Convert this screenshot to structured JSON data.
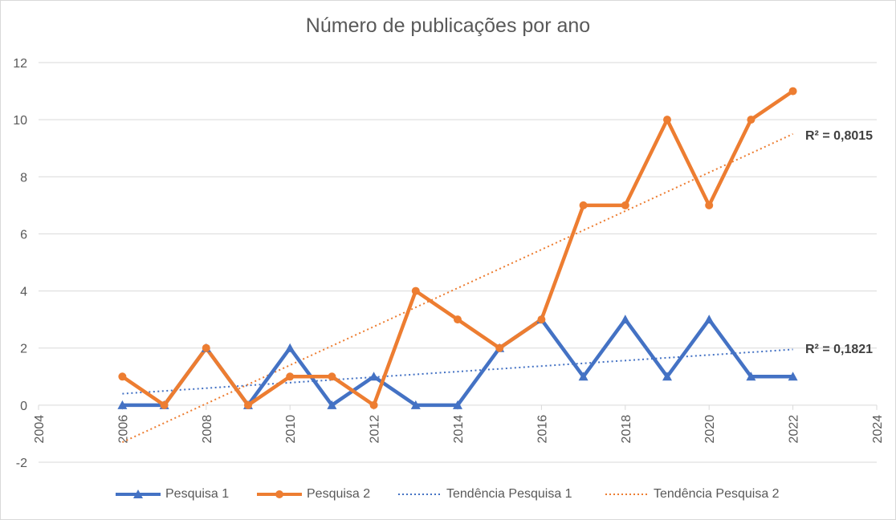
{
  "chart_data": {
    "type": "line",
    "title": "Número de publicações por ano",
    "xlim": [
      2004,
      2024
    ],
    "ylim": [
      -2,
      12
    ],
    "x_ticks": [
      "2004",
      "2006",
      "2008",
      "2010",
      "2012",
      "2014",
      "2016",
      "2018",
      "2020",
      "2022",
      "2024"
    ],
    "y_ticks": [
      "-2",
      "0",
      "2",
      "4",
      "6",
      "8",
      "10",
      "12"
    ],
    "x": [
      2006,
      2007,
      2008,
      2009,
      2010,
      2011,
      2012,
      2013,
      2014,
      2015,
      2016,
      2017,
      2018,
      2019,
      2020,
      2021,
      2022
    ],
    "series": [
      {
        "name": "Pesquisa 1",
        "color": "#4472c4",
        "marker": "triangle",
        "values": [
          0,
          0,
          2,
          0,
          2,
          0,
          1,
          0,
          0,
          2,
          3,
          1,
          3,
          1,
          3,
          1,
          1
        ]
      },
      {
        "name": "Pesquisa 2",
        "color": "#ed7d31",
        "marker": "circle",
        "values": [
          1,
          0,
          2,
          0,
          1,
          1,
          0,
          4,
          3,
          2,
          3,
          7,
          7,
          10,
          7,
          10,
          11
        ]
      }
    ],
    "trendlines": [
      {
        "name": "Tendência Pesquisa 1",
        "color": "#4472c4",
        "style": "dotted",
        "x": [
          2006,
          2022
        ],
        "y": [
          0.4,
          1.95
        ],
        "r2_label": "R² = 0,1821"
      },
      {
        "name": "Tendência Pesquisa 2",
        "color": "#ed7d31",
        "style": "dotted",
        "x": [
          2006,
          2022
        ],
        "y": [
          -1.3,
          9.5
        ],
        "r2_label": "R² = 0,8015"
      }
    ],
    "grid": {
      "horizontal": true,
      "color": "#d9d9d9"
    },
    "legend_position": "bottom"
  }
}
